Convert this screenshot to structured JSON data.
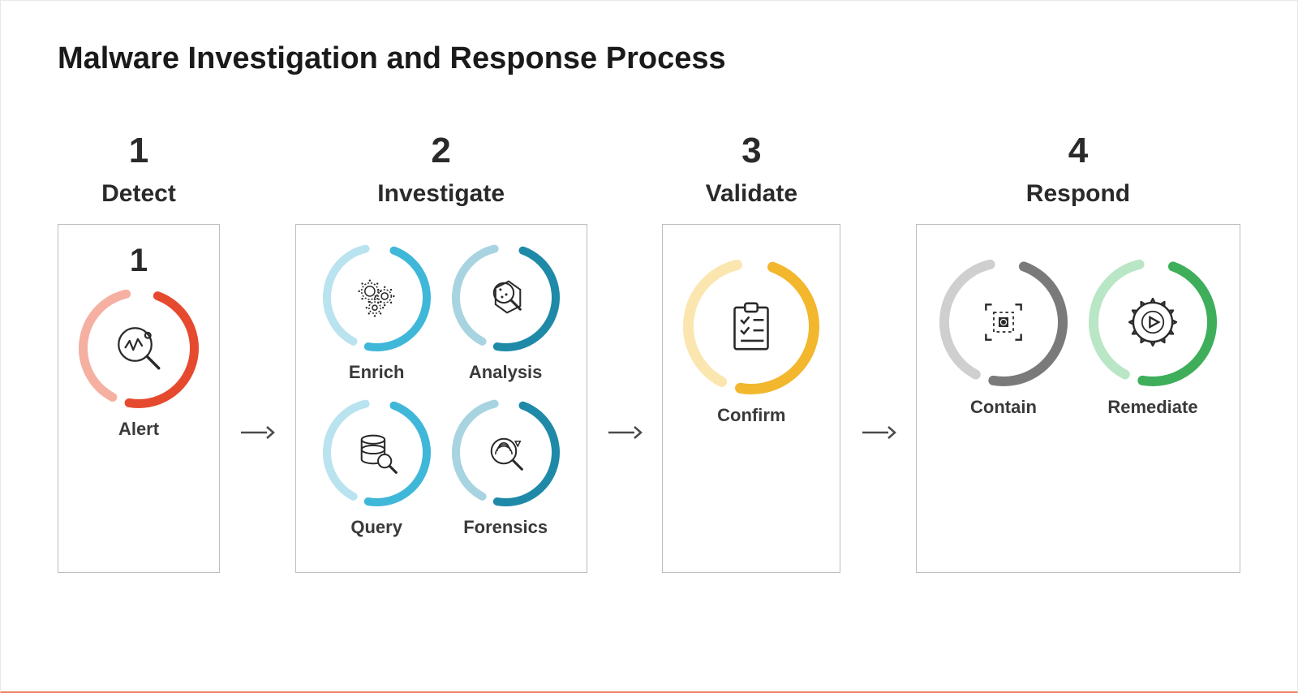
{
  "title": "Malware Investigation and Response Process",
  "colors": {
    "text_primary": "#1a1a1a",
    "text_secondary": "#3a3a3a",
    "box_border": "#bdbdbd",
    "arrow": "#4a4a4a",
    "icon_stroke": "#2a2a2a",
    "alert_dark": "#e64a2e",
    "alert_light": "#f5b0a1",
    "investigate_light_dark": "#3fb7d9",
    "investigate_light_light": "#b9e3ef",
    "investigate_dark_dark": "#1e8aa8",
    "investigate_dark_light": "#a7d4e0",
    "validate_dark": "#f2b72d",
    "validate_light": "#fbe6b0",
    "contain_dark": "#7a7a7a",
    "contain_light": "#cfcfcf",
    "remediate_dark": "#3fae5a",
    "remediate_light": "#b9e6c5"
  },
  "ring_style": {
    "outer_radius": 70,
    "stroke_width": 12,
    "gap_deg": 18
  },
  "stages": [
    {
      "number": "1",
      "name": "Detect",
      "show_inner_number": true,
      "items": [
        {
          "label": "Alert",
          "ring_dark": "#e64a2e",
          "ring_light": "#f5b0a1",
          "icon": "alert"
        }
      ]
    },
    {
      "number": "2",
      "name": "Investigate",
      "items": [
        {
          "label": "Enrich",
          "ring_dark": "#3fb7d9",
          "ring_light": "#b9e3ef",
          "icon": "gears"
        },
        {
          "label": "Analysis",
          "ring_dark": "#1e8aa8",
          "ring_light": "#a7d4e0",
          "icon": "analysis"
        },
        {
          "label": "Query",
          "ring_dark": "#3fb7d9",
          "ring_light": "#b9e3ef",
          "icon": "db-search"
        },
        {
          "label": "Forensics",
          "ring_dark": "#1e8aa8",
          "ring_light": "#a7d4e0",
          "icon": "forensics"
        }
      ]
    },
    {
      "number": "3",
      "name": "Validate",
      "items": [
        {
          "label": "Confirm",
          "ring_dark": "#f2b72d",
          "ring_light": "#fbe6b0",
          "icon": "checklist"
        }
      ]
    },
    {
      "number": "4",
      "name": "Respond",
      "items": [
        {
          "label": "Contain",
          "ring_dark": "#7a7a7a",
          "ring_light": "#cfcfcf",
          "icon": "contain"
        },
        {
          "label": "Remediate",
          "ring_dark": "#3fae5a",
          "ring_light": "#b9e6c5",
          "icon": "remediate"
        }
      ]
    }
  ]
}
